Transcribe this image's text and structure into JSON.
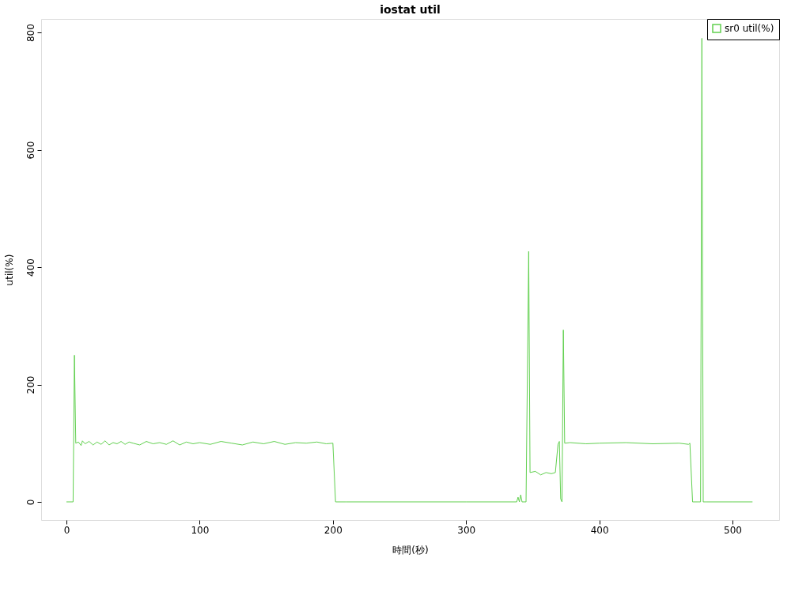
{
  "chart_data": {
    "type": "line",
    "title": "iostat util",
    "xlabel": "時間(秒)",
    "ylabel": "util(%)",
    "xlim": [
      -19,
      535
    ],
    "ylim": [
      -31,
      823
    ],
    "xticks": [
      0,
      100,
      200,
      300,
      400,
      500
    ],
    "yticks": [
      0,
      200,
      400,
      600,
      800
    ],
    "grid": false,
    "legend": "top right",
    "marker": "none",
    "line_style": "solid",
    "series": [
      {
        "name": "sr0 util(%)",
        "color": "#61d04f",
        "x": [
          0,
          5,
          6,
          7,
          9,
          11,
          12,
          14,
          17,
          20,
          23,
          26,
          29,
          32,
          35,
          38,
          41,
          44,
          47,
          50,
          55,
          60,
          65,
          70,
          75,
          80,
          85,
          90,
          95,
          100,
          108,
          116,
          124,
          132,
          140,
          148,
          156,
          164,
          172,
          180,
          188,
          195,
          200,
          202,
          210,
          250,
          300,
          338,
          339,
          340,
          341,
          342,
          345,
          347,
          348,
          352,
          356,
          360,
          364,
          367,
          369,
          370,
          371,
          372,
          373,
          374,
          378,
          390,
          400,
          420,
          440,
          460,
          467,
          468,
          470,
          474,
          476,
          477,
          478,
          480,
          500,
          515
        ],
        "values": [
          0,
          0,
          250,
          100,
          102,
          96,
          104,
          99,
          103,
          97,
          102,
          98,
          104,
          97,
          101,
          99,
          103,
          98,
          102,
          100,
          97,
          103,
          99,
          101,
          98,
          104,
          97,
          102,
          99,
          101,
          98,
          103,
          100,
          97,
          102,
          99,
          103,
          98,
          101,
          100,
          102,
          99,
          100,
          0,
          0,
          0,
          0,
          0,
          8,
          0,
          12,
          0,
          0,
          427,
          50,
          52,
          46,
          50,
          48,
          50,
          98,
          103,
          5,
          0,
          293,
          100,
          101,
          99,
          100,
          101,
          99,
          100,
          98,
          100,
          0,
          0,
          0,
          790,
          0,
          0,
          0,
          0
        ]
      }
    ]
  }
}
